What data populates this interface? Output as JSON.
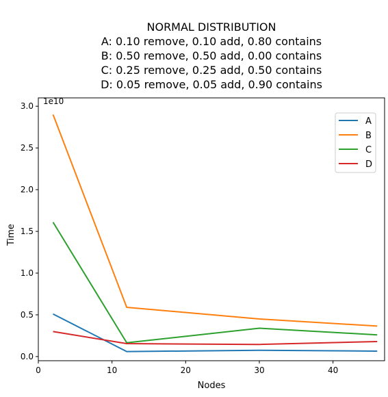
{
  "chart_data": {
    "type": "line",
    "title_lines": [
      "NORMAL DISTRIBUTION",
      "A: 0.10 remove, 0.10 add, 0.80 contains",
      "B: 0.50 remove, 0.50 add, 0.00 contains",
      "C: 0.25 remove, 0.25 add, 0.50 contains",
      "D: 0.05 remove, 0.05 add, 0.90 contains"
    ],
    "xlabel": "Nodes",
    "ylabel": "Time",
    "y_offset_label": "1e10",
    "xlim": [
      0,
      47
    ],
    "ylim": [
      -500000000.0,
      31000000000.0
    ],
    "xticks": [
      0,
      10,
      20,
      30,
      40
    ],
    "xtick_labels": [
      "0",
      "10",
      "20",
      "30",
      "40"
    ],
    "yticks": [
      0,
      5000000000.0,
      10000000000.0,
      15000000000.0,
      20000000000.0,
      25000000000.0,
      30000000000.0
    ],
    "ytick_labels": [
      "0.0",
      "0.5",
      "1.0",
      "1.5",
      "2.0",
      "2.5",
      "3.0"
    ],
    "legend_position": "top-right",
    "x": [
      2,
      12,
      30,
      46
    ],
    "series": [
      {
        "name": "A",
        "color": "#1f77b4",
        "values": [
          5100000000.0,
          600000000.0,
          750000000.0,
          650000000.0
        ]
      },
      {
        "name": "B",
        "color": "#ff7f0e",
        "values": [
          29000000000.0,
          5900000000.0,
          4500000000.0,
          3650000000.0
        ]
      },
      {
        "name": "C",
        "color": "#2ca02c",
        "values": [
          16100000000.0,
          1650000000.0,
          3400000000.0,
          2600000000.0
        ]
      },
      {
        "name": "D",
        "color": "#d62728",
        "values": [
          3000000000.0,
          1550000000.0,
          1450000000.0,
          1800000000.0
        ]
      }
    ]
  }
}
